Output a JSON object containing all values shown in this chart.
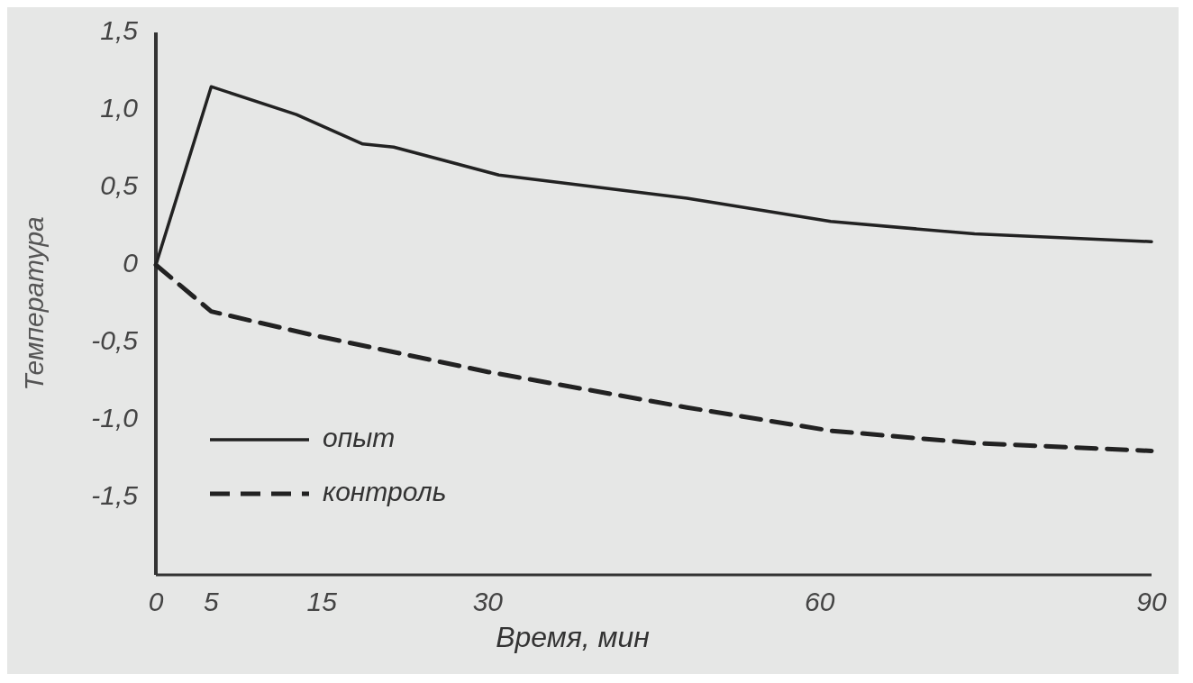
{
  "chart_data": {
    "type": "line",
    "xlabel": "Время, мин",
    "ylabel": "Температура",
    "xlim": [
      0,
      90
    ],
    "xticks": [
      0,
      5,
      15,
      30,
      60,
      90
    ],
    "ylim": [
      -2,
      1.5
    ],
    "yticks": [
      {
        "value": 1.5,
        "label": "1,5"
      },
      {
        "value": 1,
        "label": "1,0"
      },
      {
        "value": 0.5,
        "label": "0,5"
      },
      0,
      {
        "value": -0.5,
        "label": "-0,5"
      },
      {
        "value": -1,
        "label": "-1,0"
      },
      {
        "value": -1.5,
        "label": "-1,5"
      }
    ],
    "legend": "bottom left",
    "grid": false,
    "series": [
      {
        "name": "опыт",
        "color": "#222222",
        "line_style": "solid",
        "x": [
          0,
          5,
          12.7,
          18.7,
          21.5,
          31,
          48,
          61,
          74,
          90
        ],
        "values": [
          0,
          1.15,
          0.97,
          0.78,
          0.76,
          0.58,
          0.43,
          0.28,
          0.2,
          0.15
        ]
      },
      {
        "name": "контроль",
        "color": "#222222",
        "line_style": "dashed",
        "x": [
          0,
          5,
          14,
          30,
          48,
          61,
          74,
          90
        ],
        "values": [
          0,
          -0.3,
          -0.45,
          -0.69,
          -0.92,
          -1.07,
          -1.15,
          -1.2
        ]
      }
    ]
  }
}
